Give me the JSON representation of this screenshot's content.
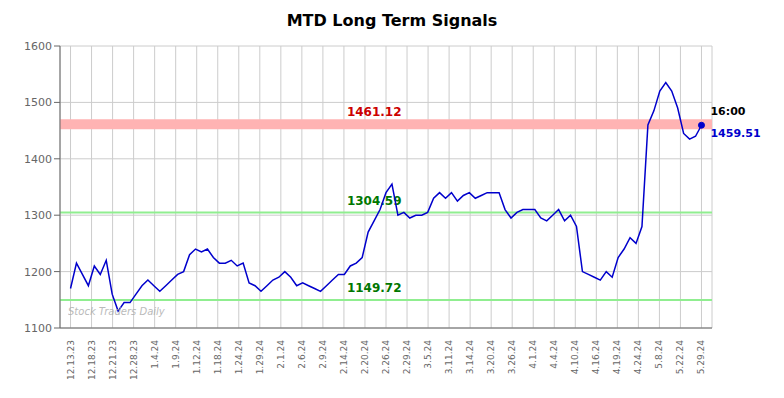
{
  "chart_data": {
    "type": "line",
    "title": "MTD Long Term Signals",
    "color": "#0000cc",
    "grid": true,
    "xlim": [
      -0.5,
      30.5
    ],
    "xticks": [
      {
        "value": 0,
        "label": "12.13.23"
      },
      {
        "value": 1,
        "label": "12.18.23"
      },
      {
        "value": 2,
        "label": "12.21.23"
      },
      {
        "value": 3,
        "label": "12.28.23"
      },
      {
        "value": 4,
        "label": "1.4.24"
      },
      {
        "value": 5,
        "label": "1.9.24"
      },
      {
        "value": 6,
        "label": "1.12.24"
      },
      {
        "value": 7,
        "label": "1.18.24"
      },
      {
        "value": 8,
        "label": "1.24.24"
      },
      {
        "value": 9,
        "label": "1.29.24"
      },
      {
        "value": 10,
        "label": "2.1.24"
      },
      {
        "value": 11,
        "label": "2.6.24"
      },
      {
        "value": 12,
        "label": "2.9.24"
      },
      {
        "value": 13,
        "label": "2.14.24"
      },
      {
        "value": 14,
        "label": "2.20.24"
      },
      {
        "value": 15,
        "label": "2.26.24"
      },
      {
        "value": 16,
        "label": "2.29.24"
      },
      {
        "value": 17,
        "label": "3.5.24"
      },
      {
        "value": 18,
        "label": "3.11.24"
      },
      {
        "value": 19,
        "label": "3.14.24"
      },
      {
        "value": 20,
        "label": "3.20.24"
      },
      {
        "value": 21,
        "label": "3.26.24"
      },
      {
        "value": 22,
        "label": "4.1.24"
      },
      {
        "value": 23,
        "label": "4.4.24"
      },
      {
        "value": 24,
        "label": "4.10.24"
      },
      {
        "value": 25,
        "label": "4.16.24"
      },
      {
        "value": 26,
        "label": "4.19.24"
      },
      {
        "value": 27,
        "label": "4.24.24"
      },
      {
        "value": 28,
        "label": "5.8.24"
      },
      {
        "value": 29,
        "label": "5.22.24"
      },
      {
        "value": 30,
        "label": "5.29.24"
      }
    ],
    "ylim": [
      1100,
      1600
    ],
    "yticks": [
      1100,
      1200,
      1300,
      1400,
      1500,
      1600
    ],
    "x": [
      0,
      0.283,
      0.566,
      0.8491,
      1.1321,
      1.4151,
      1.6981,
      1.9811,
      2.2642,
      2.5472,
      2.8302,
      3.1132,
      3.3962,
      3.6792,
      3.9623,
      4.2453,
      4.5283,
      4.8113,
      5.0943,
      5.3774,
      5.6604,
      5.9434,
      6.2264,
      6.5094,
      6.7925,
      7.0755,
      7.3585,
      7.6415,
      7.9245,
      8.2075,
      8.4906,
      8.7736,
      9.0566,
      9.3396,
      9.6226,
      9.9057,
      10.1887,
      10.4717,
      10.7547,
      11.0377,
      11.3208,
      11.6038,
      11.8868,
      12.1698,
      12.4528,
      12.7358,
      13.0189,
      13.3019,
      13.5849,
      13.8679,
      14.1509,
      14.434,
      14.717,
      15,
      15.283,
      15.566,
      15.8491,
      16.1321,
      16.4151,
      16.6981,
      16.9811,
      17.2642,
      17.5472,
      17.8302,
      18.1132,
      18.3962,
      18.6792,
      18.9623,
      19.2453,
      19.5283,
      19.8113,
      20.0943,
      20.3774,
      20.6604,
      20.9434,
      21.2264,
      21.5094,
      21.7925,
      22.0755,
      22.3585,
      22.6415,
      22.9245,
      23.2075,
      23.4906,
      23.7736,
      24.0566,
      24.3396,
      24.6226,
      24.9057,
      25.1887,
      25.4717,
      25.7547,
      26.0377,
      26.3208,
      26.6038,
      26.8868,
      27.1698,
      27.4528,
      27.7358,
      28.0189,
      28.3019,
      28.5849,
      28.8679,
      29.1509,
      29.434,
      29.717,
      30
    ],
    "values": [
      1170,
      1215,
      1195,
      1175,
      1210,
      1195,
      1220,
      1160,
      1130,
      1145,
      1145,
      1160,
      1175,
      1185,
      1175,
      1165,
      1175,
      1185,
      1195,
      1200,
      1230,
      1240,
      1235,
      1240,
      1225,
      1215,
      1215,
      1220,
      1210,
      1215,
      1180,
      1175,
      1165,
      1175,
      1185,
      1190,
      1200,
      1190,
      1175,
      1180,
      1175,
      1170,
      1165,
      1175,
      1185,
      1195,
      1195,
      1210,
      1215,
      1225,
      1270,
      1290,
      1310,
      1340,
      1355,
      1300,
      1305,
      1295,
      1300,
      1300,
      1305,
      1330,
      1340,
      1330,
      1340,
      1325,
      1335,
      1340,
      1330,
      1335,
      1340,
      1340,
      1340,
      1310,
      1295,
      1305,
      1310,
      1310,
      1310,
      1295,
      1290,
      1300,
      1310,
      1290,
      1300,
      1280,
      1200,
      1195,
      1190,
      1185,
      1200,
      1190,
      1225,
      1240,
      1260,
      1250,
      1280,
      1460,
      1485,
      1520,
      1535,
      1520,
      1490,
      1445,
      1435,
      1440,
      1459.51
    ],
    "hlines": [
      {
        "value": 1461.12,
        "label": "1461.12",
        "color": "#ffb3b3",
        "label_color": "#cc0000"
      },
      {
        "value": 1304.59,
        "label": "1304.59",
        "color": "#90ee90",
        "label_color": "#007700"
      },
      {
        "value": 1149.72,
        "label": "1149.72",
        "color": "#90ee90",
        "label_color": "#007700"
      }
    ],
    "annotations": [
      {
        "text": "16:00",
        "color": "#000000"
      },
      {
        "text": "1459.51",
        "color": "#0000cc"
      },
      {
        "text": "Stock Traders Daily",
        "color": "#aaaaaa"
      }
    ]
  }
}
